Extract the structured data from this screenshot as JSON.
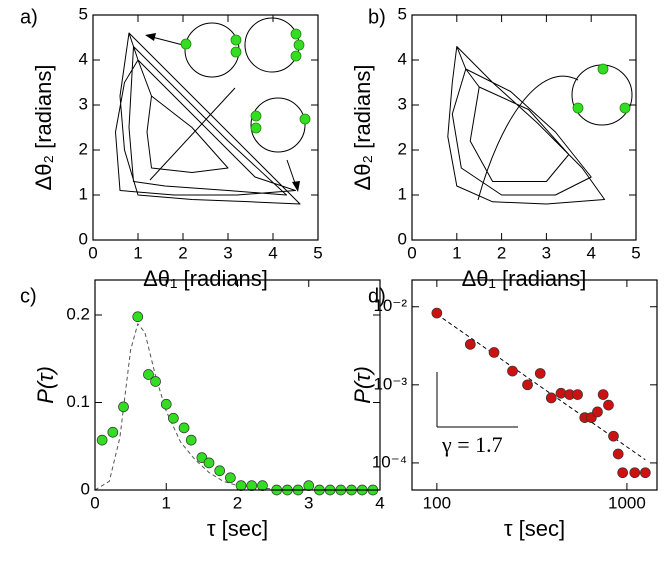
{
  "chart_data": [
    {
      "type": "line",
      "panel_label": "a)",
      "x_label": "Δθ₁ [radians]",
      "y_label": "Δθ₂ [radians]",
      "xlim": [
        0,
        5
      ],
      "ylim": [
        0,
        5
      ],
      "xticks": [
        0,
        1,
        2,
        3,
        4,
        5
      ],
      "yticks": [
        0,
        1,
        2,
        3,
        4,
        5
      ],
      "series": [
        {
          "color": "#000000",
          "style": "solid-line",
          "x": [
            0.8,
            1.5,
            2.5,
            3.5,
            4.6,
            3.5,
            2.2,
            1.0,
            0.7,
            0.6,
            0.8,
            0.9,
            2,
            3,
            4.3,
            3,
            1.6,
            0.9,
            0.8,
            0.9,
            1.0,
            2.3,
            3.6,
            4.5,
            3.2,
            1.8,
            0.6,
            0.5,
            0.7,
            1.0,
            1.3,
            2.2,
            3.0,
            2.2,
            1.3,
            1.2,
            1.3
          ],
          "values": [
            4.6,
            3.9,
            2.9,
            1.9,
            0.8,
            0.85,
            0.9,
            1.0,
            2.0,
            3.2,
            4.6,
            4.3,
            3.2,
            2.2,
            1.0,
            1.1,
            1.2,
            1.3,
            2.5,
            4.3,
            4.0,
            2.7,
            1.4,
            1.1,
            1.0,
            1.0,
            1.1,
            2.4,
            3.5,
            4.0,
            3.2,
            2.5,
            1.6,
            1.5,
            1.6,
            2.4,
            3.2
          ]
        }
      ]
    },
    {
      "type": "line",
      "panel_label": "b)",
      "x_label": "Δθ₁ [radians]",
      "y_label": "Δθ₂ [radians]",
      "xlim": [
        0,
        5
      ],
      "ylim": [
        0,
        5
      ],
      "xticks": [
        0,
        1,
        2,
        3,
        4,
        5
      ],
      "yticks": [
        0,
        1,
        2,
        3,
        4,
        5
      ],
      "series": [
        {
          "color": "#000000",
          "style": "solid-line",
          "x": [
            1.0,
            1.8,
            2.8,
            3.8,
            4.3,
            3.0,
            1.8,
            1.0,
            0.8,
            0.9,
            1.0,
            1.2,
            2.2,
            3.2,
            4.0,
            3.2,
            2.0,
            1.1,
            0.9,
            1.2,
            1.5,
            2.6,
            3.5,
            3.0,
            1.8,
            1.3,
            1.5
          ],
          "values": [
            4.3,
            3.5,
            2.6,
            1.6,
            0.9,
            0.8,
            0.85,
            1.2,
            2.3,
            3.5,
            4.3,
            3.8,
            3.3,
            2.4,
            1.4,
            1.0,
            1.0,
            1.6,
            2.8,
            3.8,
            3.4,
            2.9,
            1.9,
            1.3,
            1.3,
            2.2,
            3.4
          ]
        }
      ]
    },
    {
      "type": "scatter",
      "panel_label": "c)",
      "x_label": "τ [sec]",
      "y_label": "P(τ)",
      "xlim": [
        0,
        4
      ],
      "ylim": [
        0,
        0.24
      ],
      "xticks": [
        0,
        1,
        2,
        3,
        4
      ],
      "yticks": [
        0,
        0.1,
        0.2
      ],
      "series": [
        {
          "color": "#555555",
          "style": "dashed-line",
          "x": [
            0,
            0.2,
            0.35,
            0.5,
            0.6,
            0.7,
            0.85,
            1.0,
            1.2,
            1.4,
            1.6,
            1.8,
            2.0,
            2.5,
            4
          ],
          "values": [
            0,
            0.01,
            0.06,
            0.16,
            0.19,
            0.18,
            0.13,
            0.09,
            0.055,
            0.035,
            0.02,
            0.01,
            0.005,
            0.001,
            0
          ]
        },
        {
          "color": "#33dd22",
          "style": "markers",
          "x": [
            0.1,
            0.25,
            0.4,
            0.6,
            0.75,
            0.85,
            1.0,
            1.1,
            1.25,
            1.35,
            1.5,
            1.6,
            1.75,
            1.9,
            2.05,
            2.2,
            2.35,
            2.55,
            2.7,
            2.85,
            3.0,
            3.15,
            3.3,
            3.45,
            3.6,
            3.75,
            3.9
          ],
          "values": [
            0.057,
            0.066,
            0.095,
            0.198,
            0.132,
            0.124,
            0.098,
            0.082,
            0.071,
            0.057,
            0.037,
            0.031,
            0.022,
            0.014,
            0.005,
            0.005,
            0.005,
            0,
            0,
            0,
            0.005,
            0,
            0,
            0,
            0,
            0,
            0
          ]
        }
      ]
    },
    {
      "type": "scatter",
      "panel_label": "d)",
      "x_label": "τ [sec]",
      "y_label": "P(τ)",
      "annotation": "γ = 1.7",
      "xscale": "log",
      "yscale": "log",
      "xlim": [
        74,
        1440
      ],
      "ylim": [
        4.5e-05,
        0.022
      ],
      "xticks": [
        100,
        1000
      ],
      "yticks": [
        {
          "value": 0.0001,
          "label": "10⁻⁴"
        },
        {
          "value": 0.001,
          "label": "10⁻³"
        },
        {
          "value": 0.01,
          "label": "10⁻²"
        }
      ],
      "series": [
        {
          "color": "#000000",
          "style": "dashed-line",
          "x": [
            100,
            1250
          ],
          "values": [
            0.008,
            0.00011
          ]
        },
        {
          "color": "#cc1111",
          "style": "markers",
          "x": [
            100,
            150,
            200,
            250,
            300,
            350,
            400,
            450,
            500,
            550,
            600,
            650,
            700,
            750,
            800,
            850,
            900,
            950,
            1100,
            1250
          ],
          "values": [
            0.0083,
            0.0033,
            0.0026,
            0.0015,
            0.001,
            0.0014,
            0.00068,
            0.00078,
            0.00075,
            0.00075,
            0.00038,
            0.00038,
            0.00045,
            0.00075,
            0.00055,
            0.00022,
            0.00013,
            7.5e-05,
            7.5e-05,
            7.5e-05
          ]
        }
      ]
    }
  ]
}
